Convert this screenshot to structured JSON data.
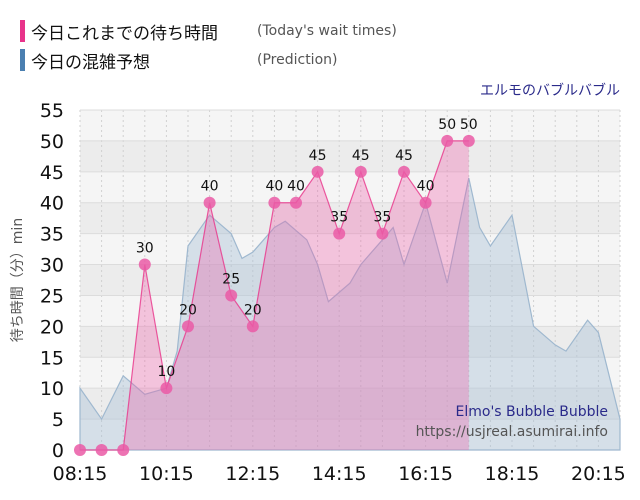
{
  "legend": {
    "today": {
      "label": "今日これまでの待ち時間",
      "en": "(Today's wait times)",
      "color": "#e8338a"
    },
    "prediction": {
      "label": "今日の混雑予想",
      "en": "(Prediction)",
      "color": "#4a7fb0"
    }
  },
  "attraction_name": "エルモのバブルバブル",
  "watermark": {
    "title": "Elmo's Bubble Bubble",
    "url": "https://usjreal.asumirai.info"
  },
  "chart_data": {
    "type": "area",
    "ylabel": "待ち時間（分）min",
    "ylim": [
      0,
      55
    ],
    "yticks": [
      0,
      5,
      10,
      15,
      20,
      25,
      30,
      35,
      40,
      45,
      50,
      55
    ],
    "xlim": [
      "08:15",
      "20:45"
    ],
    "xticks": [
      "08:15",
      "10:15",
      "12:15",
      "14:15",
      "16:15",
      "18:15",
      "20:15"
    ],
    "grid": true,
    "series": [
      {
        "key": "prediction",
        "color": "#a9c1d6",
        "points": [
          [
            "08:15",
            10
          ],
          [
            "08:45",
            5
          ],
          [
            "09:15",
            12
          ],
          [
            "09:45",
            9
          ],
          [
            "10:15",
            10
          ],
          [
            "10:30",
            16
          ],
          [
            "10:45",
            33
          ],
          [
            "11:15",
            38
          ],
          [
            "11:45",
            35
          ],
          [
            "12:00",
            31
          ],
          [
            "12:15",
            32
          ],
          [
            "12:45",
            36
          ],
          [
            "13:00",
            37
          ],
          [
            "13:30",
            34
          ],
          [
            "13:45",
            30
          ],
          [
            "14:00",
            24
          ],
          [
            "14:30",
            27
          ],
          [
            "14:45",
            30
          ],
          [
            "15:30",
            36
          ],
          [
            "15:45",
            30
          ],
          [
            "16:15",
            40
          ],
          [
            "16:45",
            27
          ],
          [
            "17:15",
            44
          ],
          [
            "17:30",
            36
          ],
          [
            "17:45",
            33
          ],
          [
            "18:15",
            38
          ],
          [
            "18:45",
            20
          ],
          [
            "19:15",
            17
          ],
          [
            "19:30",
            16
          ],
          [
            "20:00",
            21
          ],
          [
            "20:15",
            19
          ],
          [
            "20:30",
            12
          ],
          [
            "20:45",
            5
          ]
        ]
      },
      {
        "key": "today",
        "color": "#e8338a",
        "points": [
          [
            "08:15",
            0
          ],
          [
            "08:45",
            0
          ],
          [
            "09:15",
            0
          ],
          [
            "09:45",
            30
          ],
          [
            "10:15",
            10
          ],
          [
            "10:45",
            20
          ],
          [
            "11:15",
            40
          ],
          [
            "11:45",
            25
          ],
          [
            "12:15",
            20
          ],
          [
            "12:45",
            40
          ],
          [
            "13:15",
            40
          ],
          [
            "13:45",
            45
          ],
          [
            "14:15",
            35
          ],
          [
            "14:45",
            45
          ],
          [
            "15:15",
            35
          ],
          [
            "15:45",
            45
          ],
          [
            "16:15",
            40
          ],
          [
            "16:45",
            50
          ],
          [
            "17:15",
            50
          ]
        ],
        "labels": [
          null,
          null,
          null,
          "30",
          "10",
          "20",
          "40",
          "25",
          "20",
          "40",
          "40",
          "45",
          "35",
          "45",
          "35",
          "45",
          "40",
          "50",
          "50"
        ]
      }
    ]
  }
}
